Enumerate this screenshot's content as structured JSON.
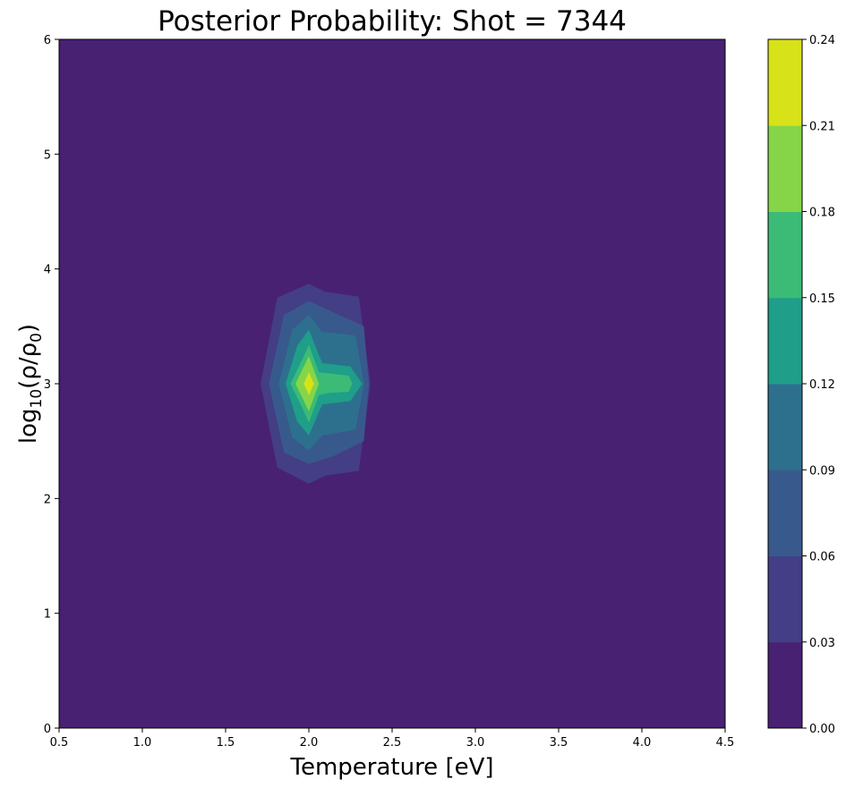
{
  "chart_data": {
    "type": "contourf",
    "title": "Posterior Probability: Shot = 7344",
    "xlabel": "Temperature [eV]",
    "ylabel": "log10(ρ/ρ0)",
    "xlim": [
      0.5,
      4.5
    ],
    "ylim": [
      0,
      6
    ],
    "xticks": [
      "0.5",
      "1.0",
      "1.5",
      "2.0",
      "2.5",
      "3.0",
      "3.5",
      "4.0",
      "4.5"
    ],
    "yticks": [
      "0",
      "1",
      "2",
      "3",
      "4",
      "5",
      "6"
    ],
    "grid": false,
    "colorbar": {
      "levels": [
        0.0,
        0.03,
        0.06,
        0.09,
        0.12,
        0.15,
        0.18,
        0.21,
        0.24
      ],
      "tick_labels": [
        "0.00",
        "0.03",
        "0.06",
        "0.09",
        "0.12",
        "0.15",
        "0.18",
        "0.21",
        "0.24"
      ],
      "colors": [
        "#482173",
        "#433e85",
        "#38598c",
        "#2d708e",
        "#1f9e89",
        "#3bbb75",
        "#86d549",
        "#d8e219"
      ]
    },
    "peak": {
      "temperature": 2.0,
      "log10_density": 3.0,
      "probability_band": [
        0.21,
        0.24
      ]
    },
    "contour_regions": [
      {
        "level_min": 0.03,
        "points": [
          [
            1.71,
            3.0
          ],
          [
            1.81,
            3.75
          ],
          [
            2.0,
            3.87
          ],
          [
            2.1,
            3.8
          ],
          [
            2.3,
            3.76
          ],
          [
            2.37,
            3.0
          ],
          [
            2.3,
            2.24
          ],
          [
            2.1,
            2.2
          ],
          [
            2.0,
            2.13
          ],
          [
            1.81,
            2.27
          ]
        ]
      },
      {
        "level_min": 0.06,
        "points": [
          [
            1.76,
            3.0
          ],
          [
            1.85,
            3.6
          ],
          [
            2.0,
            3.72
          ],
          [
            2.15,
            3.62
          ],
          [
            2.33,
            3.5
          ],
          [
            2.36,
            3.0
          ],
          [
            2.33,
            2.5
          ],
          [
            2.15,
            2.37
          ],
          [
            2.0,
            2.3
          ],
          [
            1.85,
            2.4
          ]
        ]
      },
      {
        "level_min": 0.09,
        "points": [
          [
            1.82,
            3.0
          ],
          [
            1.9,
            3.47
          ],
          [
            2.0,
            3.6
          ],
          [
            2.08,
            3.45
          ],
          [
            2.28,
            3.42
          ],
          [
            2.33,
            3.0
          ],
          [
            2.28,
            2.6
          ],
          [
            2.08,
            2.55
          ],
          [
            2.0,
            2.42
          ],
          [
            1.9,
            2.53
          ]
        ]
      },
      {
        "level_min": 0.12,
        "points": [
          [
            1.86,
            3.0
          ],
          [
            1.93,
            3.33
          ],
          [
            2.0,
            3.47
          ],
          [
            2.08,
            3.18
          ],
          [
            2.25,
            3.15
          ],
          [
            2.32,
            3.0
          ],
          [
            2.25,
            2.85
          ],
          [
            2.08,
            2.82
          ],
          [
            2.0,
            2.55
          ],
          [
            1.93,
            2.67
          ]
        ]
      },
      {
        "level_min": 0.15,
        "points": [
          [
            1.89,
            3.0
          ],
          [
            1.97,
            3.24
          ],
          [
            2.0,
            3.34
          ],
          [
            2.06,
            3.1
          ],
          [
            2.12,
            3.09
          ],
          [
            2.24,
            3.07
          ],
          [
            2.26,
            3.0
          ],
          [
            2.24,
            2.93
          ],
          [
            2.12,
            2.92
          ],
          [
            2.06,
            2.9
          ],
          [
            2.0,
            2.66
          ],
          [
            1.97,
            2.76
          ]
        ]
      },
      {
        "level_min": 0.18,
        "points": [
          [
            1.92,
            3.0
          ],
          [
            2.0,
            3.24
          ],
          [
            2.06,
            3.0
          ],
          [
            2.0,
            2.76
          ]
        ]
      },
      {
        "level_min": 0.21,
        "points": [
          [
            1.97,
            3.0
          ],
          [
            2.0,
            3.1
          ],
          [
            2.03,
            3.0
          ],
          [
            2.0,
            2.9
          ]
        ]
      }
    ]
  }
}
